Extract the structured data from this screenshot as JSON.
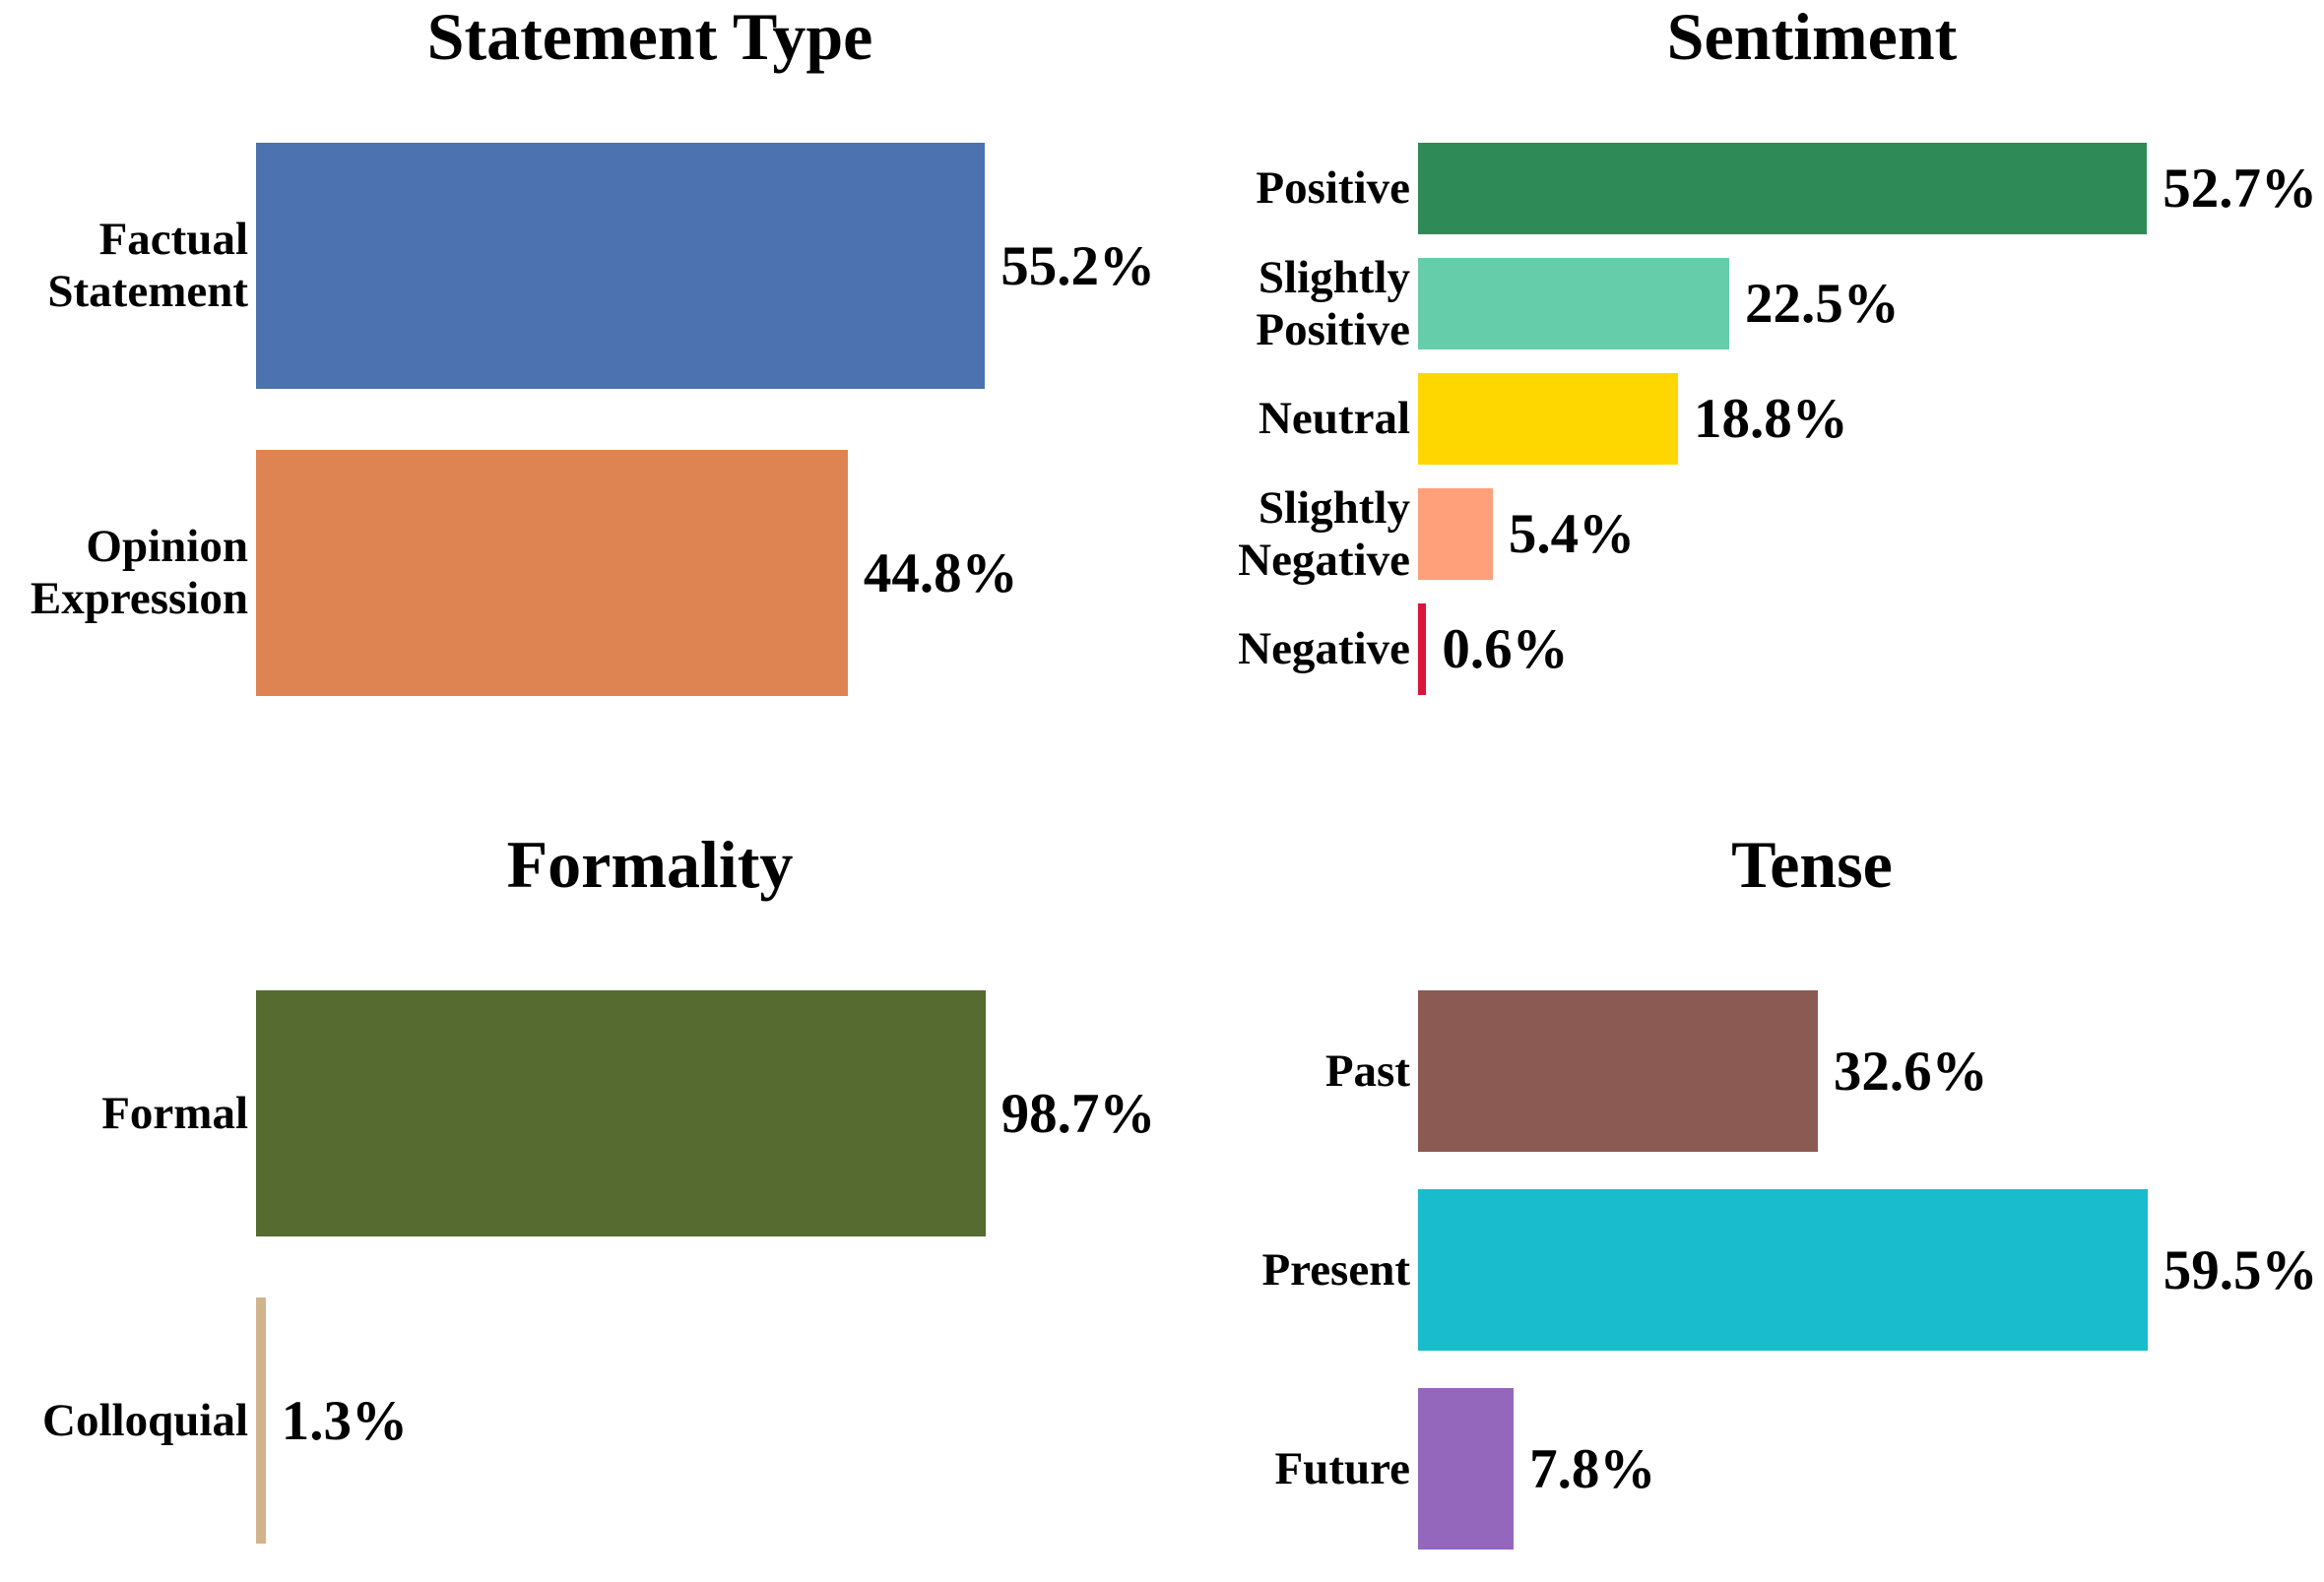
{
  "figure_background": "#ffffff",
  "text_color": "#000000",
  "chart_data": [
    {
      "type": "bar",
      "orientation": "horizontal",
      "title": "Statement Type",
      "categories": [
        "Factual\nStatement",
        "Opinion\nExpression"
      ],
      "values": [
        55.2,
        44.8
      ],
      "value_labels": [
        "55.2%",
        "44.8%"
      ],
      "bar_colors": [
        "#4C72B0",
        "#DD8452"
      ],
      "unit": "%",
      "xlim": [
        0,
        68.6
      ],
      "grid": false,
      "legend": "none",
      "value_label_position": "right-of-bar"
    },
    {
      "type": "bar",
      "orientation": "horizontal",
      "title": "Sentiment",
      "categories": [
        "Positive",
        "Slightly\nPositive",
        "Neutral",
        "Slightly\nNegative",
        "Negative"
      ],
      "values": [
        52.7,
        22.5,
        18.8,
        5.4,
        0.6
      ],
      "value_labels": [
        "52.7%",
        "22.5%",
        "18.8%",
        "5.4%",
        "0.6%"
      ],
      "bar_colors": [
        "#2E8B57",
        "#66CDAA",
        "#FFD700",
        "#FFA07A",
        "#DC143C"
      ],
      "unit": "%",
      "xlim": [
        0,
        65.5
      ],
      "grid": false,
      "legend": "none",
      "value_label_position": "right-of-bar"
    },
    {
      "type": "bar",
      "orientation": "horizontal",
      "title": "Formality",
      "categories": [
        "Formal",
        "Colloquial"
      ],
      "values": [
        98.7,
        1.3
      ],
      "value_labels": [
        "98.7%",
        "1.3%"
      ],
      "bar_colors": [
        "#556B2F",
        "#D2B48C"
      ],
      "unit": "%",
      "xlim": [
        0,
        122.6
      ],
      "grid": false,
      "legend": "none",
      "value_label_position": "right-of-bar"
    },
    {
      "type": "bar",
      "orientation": "horizontal",
      "title": "Tense",
      "categories": [
        "Past",
        "Present",
        "Future"
      ],
      "values": [
        32.6,
        59.5,
        7.8
      ],
      "value_labels": [
        "32.6%",
        "59.5%",
        "7.8%"
      ],
      "bar_colors": [
        "#8B5A52",
        "#18BCCC",
        "#9467BD"
      ],
      "unit": "%",
      "xlim": [
        0,
        73.9
      ],
      "grid": false,
      "legend": "none",
      "value_label_position": "right-of-bar"
    }
  ]
}
